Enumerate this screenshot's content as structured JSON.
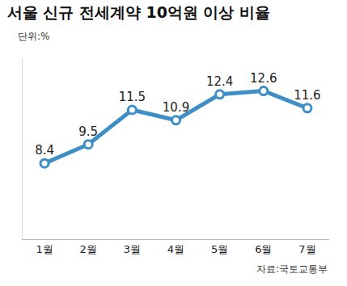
{
  "chart_data": {
    "type": "line",
    "title": "서울 신규 전세계약 10억원 이상 비율",
    "subtitle": "단위:%",
    "source": "자료:국토교통부",
    "categories": [
      "1월",
      "2월",
      "3월",
      "4월",
      "5월",
      "6월",
      "7월"
    ],
    "values": [
      8.4,
      9.5,
      11.5,
      10.9,
      12.4,
      12.6,
      11.6
    ],
    "color": "#3d8fc6",
    "marker": "circle",
    "ylim": [
      4,
      14.5
    ],
    "grid": false,
    "data_labels": true,
    "tick_labels": "x"
  }
}
